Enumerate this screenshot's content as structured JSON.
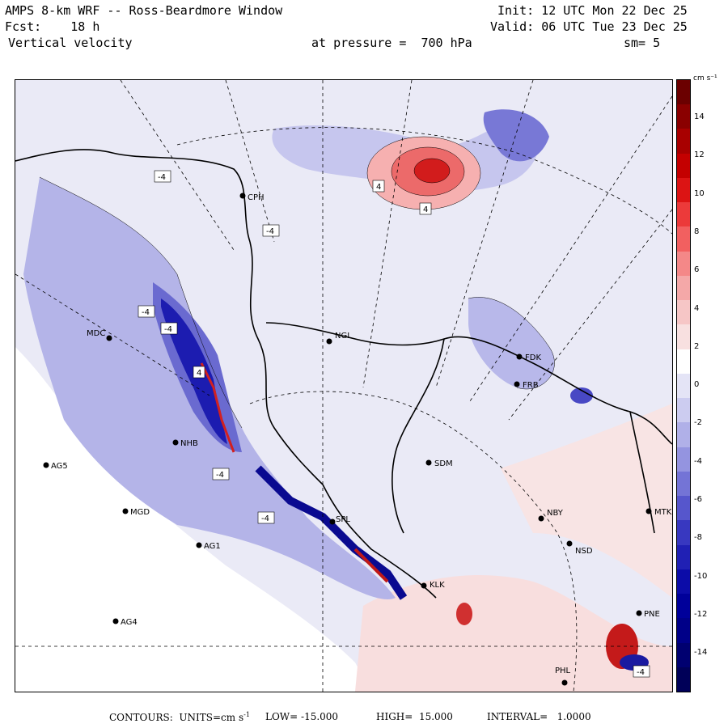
{
  "header": {
    "model": "AMPS 8-km WRF -- Ross-Beardmore Window",
    "fcst": "Fcst:    18 h",
    "field": "Vertical velocity",
    "init": "Init: 12 UTC Mon 22 Dec 25",
    "valid": "Valid: 06 UTC Tue 23 Dec 25",
    "pressure": "at pressure =  700 hPa",
    "smoothing": "sm= 5"
  },
  "stations": [
    {
      "id": "CPH",
      "label": "CPH"
    },
    {
      "id": "NGL",
      "label": "NGL"
    },
    {
      "id": "MDC",
      "label": "MDC"
    },
    {
      "id": "FDK",
      "label": "FDK"
    },
    {
      "id": "FRB",
      "label": "FRB"
    },
    {
      "id": "SDM",
      "label": "SDM"
    },
    {
      "id": "AG5",
      "label": "AG5"
    },
    {
      "id": "MGD",
      "label": "MGD"
    },
    {
      "id": "AG1",
      "label": "AG1"
    },
    {
      "id": "NBY",
      "label": "NBY"
    },
    {
      "id": "NSD",
      "label": "NSD"
    },
    {
      "id": "MTK",
      "label": "MTK"
    },
    {
      "id": "PNE",
      "label": "PNE"
    },
    {
      "id": "AG4",
      "label": "AG4"
    },
    {
      "id": "PHL",
      "label": "PHL"
    },
    {
      "id": "KLK",
      "label": "KLK"
    },
    {
      "id": "SPL",
      "label": "SPL"
    },
    {
      "id": "NHB",
      "label": "NHB"
    }
  ],
  "contour_labels": [
    "-4",
    "-4",
    "-4",
    "-4",
    "-4",
    "4",
    "4",
    "4",
    "-4",
    "-4"
  ],
  "colorbar": {
    "unit": "cm s⁻¹",
    "tick_labels": [
      "14",
      "12",
      "10",
      "8",
      "6",
      "4",
      "2",
      "0",
      "-2",
      "-4",
      "-6",
      "-8",
      "-10",
      "-12",
      "-14"
    ],
    "colors": [
      "#6b0000",
      "#8a0000",
      "#a80000",
      "#c40000",
      "#dc1414",
      "#ec3a3a",
      "#f26060",
      "#f48888",
      "#f4a8a8",
      "#f6c6c6",
      "#f8e0e0",
      "#ffffff",
      "#e4e4f6",
      "#ccccf0",
      "#b0b0e8",
      "#9494e0",
      "#7474d6",
      "#5656cc",
      "#3838c0",
      "#2020b4",
      "#0c0ca8",
      "#00009a",
      "#000088",
      "#000070",
      "#000058"
    ]
  },
  "footer": {
    "contours": "CONTOURS:  UNITS=cm s",
    "units_sup": "-1",
    "low": "LOW= -15.000",
    "high": "HIGH=  15.000",
    "interval": "INTERVAL=   1.0000"
  }
}
